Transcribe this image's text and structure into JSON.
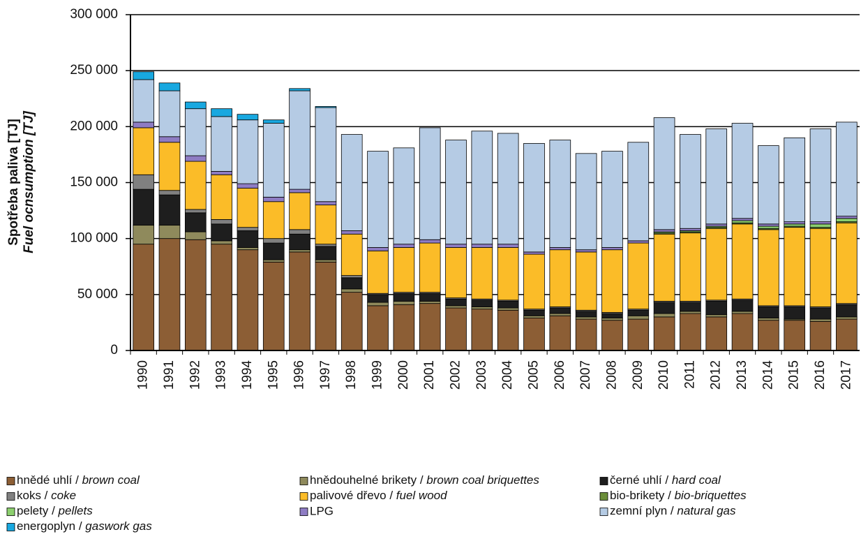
{
  "chart_data": {
    "type": "stacked-bar",
    "ylabel": "Spotřeba paliva [TJ]",
    "ylabel_en": "Fuel ocnsumption [TJ]",
    "categories": [
      "1990",
      "1991",
      "1992",
      "1993",
      "1994",
      "1995",
      "1996",
      "1997",
      "1998",
      "1999",
      "2000",
      "2001",
      "2002",
      "2003",
      "2004",
      "2005",
      "2006",
      "2007",
      "2008",
      "2009",
      "2010",
      "2011",
      "2012",
      "2013",
      "2014",
      "2015",
      "2016",
      "2017"
    ],
    "ylim": [
      0,
      300000
    ],
    "yticks": [
      0,
      {
        "value": 50000,
        "label": "50 000"
      },
      {
        "value": 100000,
        "label": "100 000"
      },
      {
        "value": 150000,
        "label": "150 000"
      },
      {
        "value": 200000,
        "label": "200 000"
      },
      {
        "value": 250000,
        "label": "250 000"
      },
      {
        "value": 300000,
        "label": "300 000"
      }
    ],
    "grid": true,
    "series": [
      {
        "name": "hnědé uhlí / brown coal",
        "color": "#8c5e35",
        "values": [
          95000,
          100000,
          99000,
          95000,
          90000,
          79000,
          88000,
          79000,
          52000,
          40000,
          41000,
          42000,
          38000,
          37000,
          36000,
          29000,
          31000,
          28000,
          27000,
          28000,
          30000,
          33000,
          30000,
          33000,
          27000,
          27000,
          26000,
          28000
        ]
      },
      {
        "name": "hnědouhelné brikety / brown coal briquettes",
        "color": "#8f8a5c",
        "values": [
          17000,
          12000,
          7000,
          3000,
          2000,
          2000,
          2000,
          2000,
          3000,
          3000,
          3000,
          2000,
          2000,
          2000,
          2000,
          2000,
          2000,
          2000,
          2000,
          3000,
          3000,
          2000,
          2000,
          2000,
          2000,
          1000,
          2000,
          2000
        ]
      },
      {
        "name": "černé uhlí / hard coal",
        "color": "#1e1e1e",
        "values": [
          32000,
          27000,
          17000,
          15000,
          15000,
          15000,
          14000,
          12000,
          10000,
          7000,
          7000,
          7000,
          6000,
          6000,
          6000,
          5000,
          5000,
          5000,
          4000,
          5000,
          10000,
          8000,
          12000,
          10000,
          10000,
          11000,
          10000,
          11000
        ]
      },
      {
        "name": "koks / coke",
        "color": "#808080",
        "values": [
          13000,
          4000,
          3000,
          4000,
          3000,
          4000,
          4000,
          2000,
          2000,
          1000,
          1000,
          1000,
          1000,
          1000,
          1000,
          1000,
          1000,
          1000,
          1000,
          1000,
          1000,
          1000,
          1000,
          1000,
          1000,
          1000,
          1000,
          1000
        ]
      },
      {
        "name": "palivové dřevo / fuel wood",
        "color": "#fbbc28",
        "values": [
          42000,
          43000,
          43000,
          40000,
          35000,
          33000,
          33000,
          35000,
          37000,
          38000,
          40000,
          44000,
          45000,
          46000,
          47000,
          49000,
          51000,
          52000,
          56000,
          59000,
          60000,
          61000,
          64000,
          67000,
          68000,
          70000,
          70000,
          72000
        ]
      },
      {
        "name": "bio-brikety / bio-briquettes",
        "color": "#6b8e3a",
        "values": [
          0,
          0,
          0,
          0,
          0,
          0,
          0,
          0,
          0,
          0,
          0,
          0,
          0,
          0,
          0,
          0,
          0,
          0,
          0,
          0,
          1000,
          1000,
          1000,
          1000,
          1000,
          1000,
          1000,
          1000
        ]
      },
      {
        "name": "pelety / pellets",
        "color": "#8ccf6e",
        "values": [
          0,
          0,
          0,
          0,
          0,
          0,
          0,
          0,
          0,
          0,
          0,
          0,
          0,
          0,
          0,
          0,
          0,
          0,
          0,
          0,
          1000,
          1000,
          1000,
          2000,
          2000,
          2000,
          3000,
          3000
        ]
      },
      {
        "name": "LPG",
        "color": "#8e7cc3",
        "values": [
          5000,
          5000,
          5000,
          3000,
          4000,
          4000,
          3000,
          3000,
          3000,
          3000,
          3000,
          3000,
          3000,
          3000,
          3000,
          2000,
          2000,
          2000,
          2000,
          2000,
          2000,
          2000,
          2000,
          2000,
          2000,
          2000,
          2000,
          2000
        ]
      },
      {
        "name": "zemní plyn / natural gas",
        "color": "#b5cbe4",
        "values": [
          38000,
          41000,
          42000,
          49000,
          57000,
          66000,
          88000,
          84000,
          86000,
          86000,
          86000,
          100000,
          93000,
          101000,
          99000,
          97000,
          96000,
          86000,
          86000,
          88000,
          100000,
          84000,
          85000,
          85000,
          70000,
          75000,
          83000,
          84000
        ]
      },
      {
        "name": "energoplyn / gaswork gas",
        "color": "#18a8e0",
        "values": [
          7000,
          7000,
          6000,
          7000,
          5000,
          3000,
          2000,
          1000,
          0,
          0,
          0,
          0,
          0,
          0,
          0,
          0,
          0,
          0,
          0,
          0,
          0,
          0,
          0,
          0,
          0,
          0,
          0,
          0
        ]
      }
    ]
  }
}
